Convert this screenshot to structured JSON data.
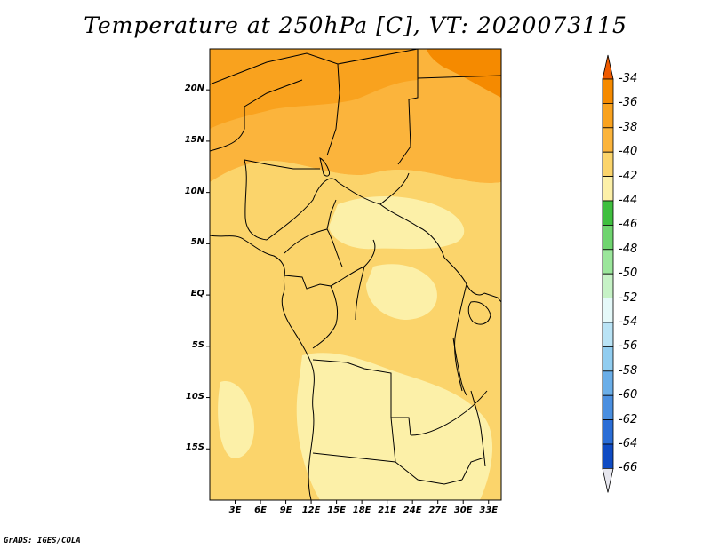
{
  "title": "Temperature at 250hPa [C], VT: 2020073115",
  "credit": "GrADS: IGES/COLA",
  "lat_labels": [
    "20N",
    "15N",
    "10N",
    "5N",
    "EQ",
    "5S",
    "10S",
    "15S"
  ],
  "lon_labels": [
    "3E",
    "6E",
    "9E",
    "12E",
    "15E",
    "18E",
    "21E",
    "24E",
    "27E",
    "30E",
    "33E"
  ],
  "colorbar": {
    "labels": [
      "-34",
      "-36",
      "-38",
      "-40",
      "-42",
      "-44",
      "-46",
      "-48",
      "-50",
      "-52",
      "-54",
      "-56",
      "-58",
      "-60",
      "-62",
      "-64",
      "-66"
    ],
    "colors": [
      "#ee5a00",
      "#f58a00",
      "#f9a21e",
      "#fbb43c",
      "#fbd46b",
      "#fcf0a8",
      "#3fbf3f",
      "#6fd46f",
      "#9be69b",
      "#c6f2c6",
      "#e5f9f9",
      "#b9e3f5",
      "#91cdf0",
      "#6aaee8",
      "#4a8fe0",
      "#2a6dd6",
      "#0f4bc3",
      "#0a2d8a",
      "#081a66",
      "#e6e6ee"
    ],
    "min": -66,
    "max": -34
  },
  "map": {
    "lat_range": [
      -20,
      24
    ],
    "lon_range": [
      0,
      34.5
    ],
    "field_colors": {
      "warm1": "#f9a21e",
      "warm2": "#fbb43c",
      "warm3": "#fbd46b",
      "cool": "#fcf0a8",
      "hot": "#f58a00"
    }
  }
}
